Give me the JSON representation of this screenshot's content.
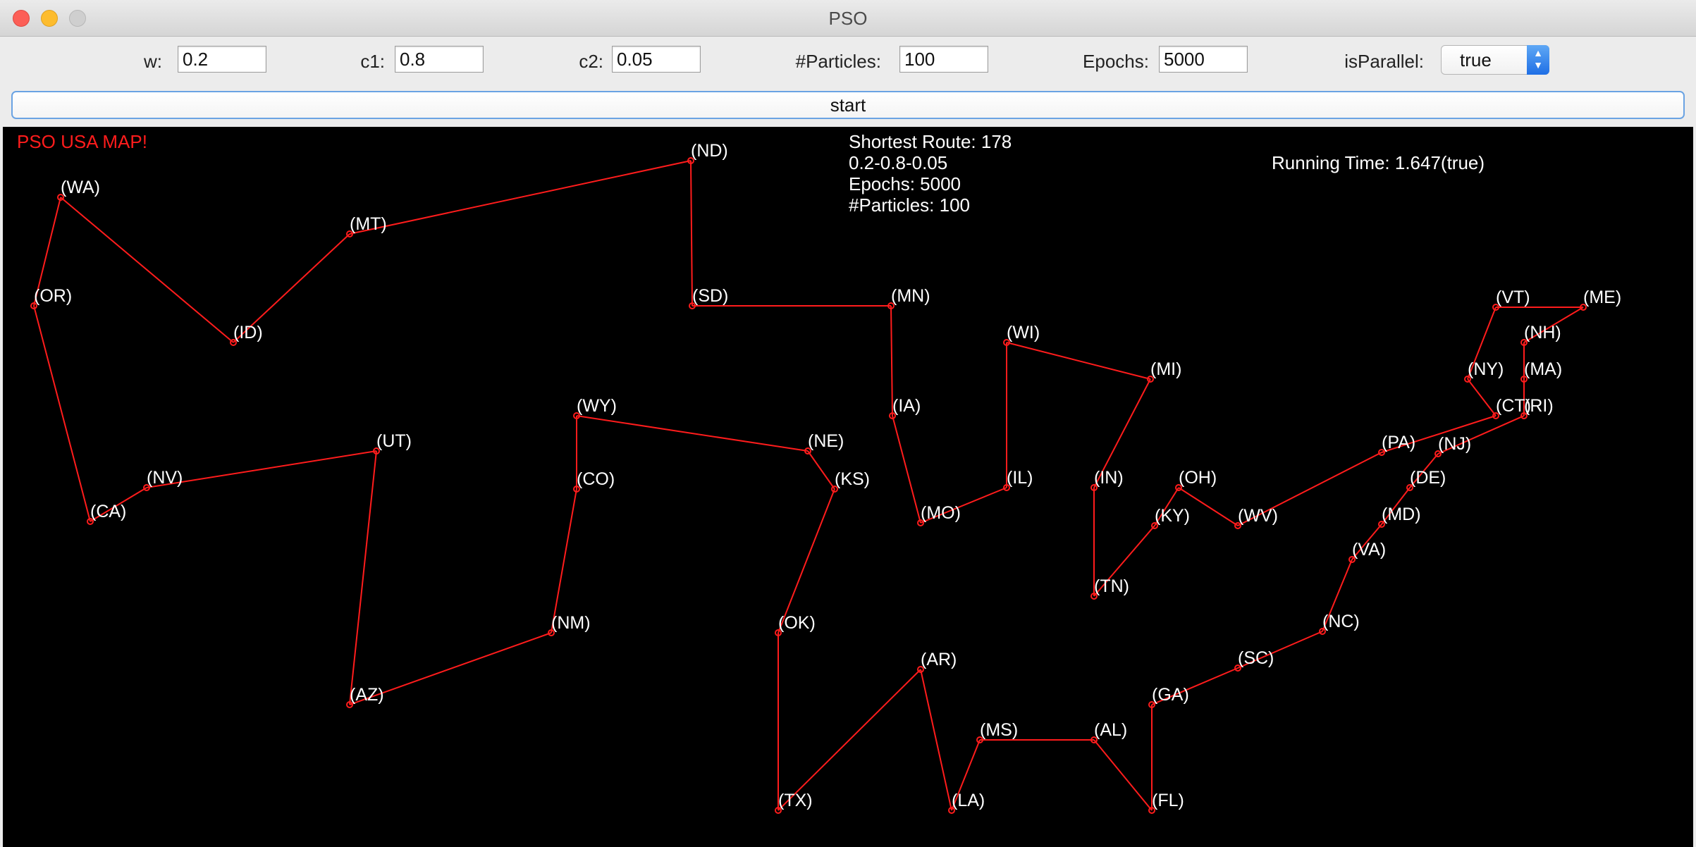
{
  "window": {
    "title": "PSO"
  },
  "params": {
    "w": {
      "label": "w:",
      "value": "0.2"
    },
    "c1": {
      "label": "c1:",
      "value": "0.8"
    },
    "c2": {
      "label": "c2:",
      "value": "0.05"
    },
    "particles": {
      "label": "#Particles:",
      "value": "100"
    },
    "epochs": {
      "label": "Epochs:",
      "value": "5000"
    },
    "isParallel": {
      "label": "isParallel:",
      "value": "true"
    }
  },
  "start_label": "start",
  "map": {
    "title": "PSO USA MAP!",
    "title_color": "#ff1c1c",
    "route_color": "#ff1c1c",
    "info_lines": [
      "Shortest Route: 178",
      "0.2-0.8-0.05",
      "Epochs: 5000",
      "#Particles: 100"
    ],
    "running_time": "Running Time: 1.647(true)",
    "route_order": [
      "WA",
      "ID",
      "MT",
      "ND",
      "SD",
      "MN",
      "IA",
      "MO",
      "IL",
      "WI",
      "MI",
      "IN",
      "TN",
      "KY",
      "OH",
      "WV",
      "PA",
      "CT",
      "NY",
      "VT",
      "ME",
      "NH",
      "MA",
      "RI",
      "NJ",
      "DE",
      "MD",
      "VA",
      "NC",
      "SC",
      "GA",
      "FL",
      "AL",
      "MS",
      "LA",
      "AR",
      "TX",
      "OK",
      "KS",
      "NE",
      "WY",
      "CO",
      "NM",
      "AZ",
      "UT",
      "NV",
      "CA",
      "OR"
    ],
    "states": [
      {
        "code": "WA",
        "label": "(WA)"
      },
      {
        "code": "OR",
        "label": "(OR)"
      },
      {
        "code": "CA",
        "label": "(CA)"
      },
      {
        "code": "NV",
        "label": "(NV)"
      },
      {
        "code": "ID",
        "label": "(ID)"
      },
      {
        "code": "MT",
        "label": "(MT)"
      },
      {
        "code": "UT",
        "label": "(UT)"
      },
      {
        "code": "AZ",
        "label": "(AZ)"
      },
      {
        "code": "WY",
        "label": "(WY)"
      },
      {
        "code": "CO",
        "label": "(CO)"
      },
      {
        "code": "NM",
        "label": "(NM)"
      },
      {
        "code": "ND",
        "label": "(ND)"
      },
      {
        "code": "SD",
        "label": "(SD)"
      },
      {
        "code": "NE",
        "label": "(NE)"
      },
      {
        "code": "KS",
        "label": "(KS)"
      },
      {
        "code": "OK",
        "label": "(OK)"
      },
      {
        "code": "TX",
        "label": "(TX)"
      },
      {
        "code": "MN",
        "label": "(MN)"
      },
      {
        "code": "IA",
        "label": "(IA)"
      },
      {
        "code": "MO",
        "label": "(MO)"
      },
      {
        "code": "AR",
        "label": "(AR)"
      },
      {
        "code": "LA",
        "label": "(LA)"
      },
      {
        "code": "WI",
        "label": "(WI)"
      },
      {
        "code": "IL",
        "label": "(IL)"
      },
      {
        "code": "MI",
        "label": "(MI)"
      },
      {
        "code": "IN",
        "label": "(IN)"
      },
      {
        "code": "OH",
        "label": "(OH)"
      },
      {
        "code": "KY",
        "label": "(KY)"
      },
      {
        "code": "TN",
        "label": "(TN)"
      },
      {
        "code": "MS",
        "label": "(MS)"
      },
      {
        "code": "AL",
        "label": "(AL)"
      },
      {
        "code": "GA",
        "label": "(GA)"
      },
      {
        "code": "FL",
        "label": "(FL)"
      },
      {
        "code": "SC",
        "label": "(SC)"
      },
      {
        "code": "NC",
        "label": "(NC)"
      },
      {
        "code": "VA",
        "label": "(VA)"
      },
      {
        "code": "WV",
        "label": "(WV)"
      },
      {
        "code": "MD",
        "label": "(MD)"
      },
      {
        "code": "DE",
        "label": "(DE)"
      },
      {
        "code": "PA",
        "label": "(PA)"
      },
      {
        "code": "NJ",
        "label": "(NJ)"
      },
      {
        "code": "NY",
        "label": "(NY)"
      },
      {
        "code": "CT",
        "label": "(CT)"
      },
      {
        "code": "RI",
        "label": "(RI)"
      },
      {
        "code": "MA",
        "label": "(MA)"
      },
      {
        "code": "VT",
        "label": "(VT)"
      },
      {
        "code": "NH",
        "label": "(NH)"
      },
      {
        "code": "ME",
        "label": "(ME)"
      }
    ]
  }
}
